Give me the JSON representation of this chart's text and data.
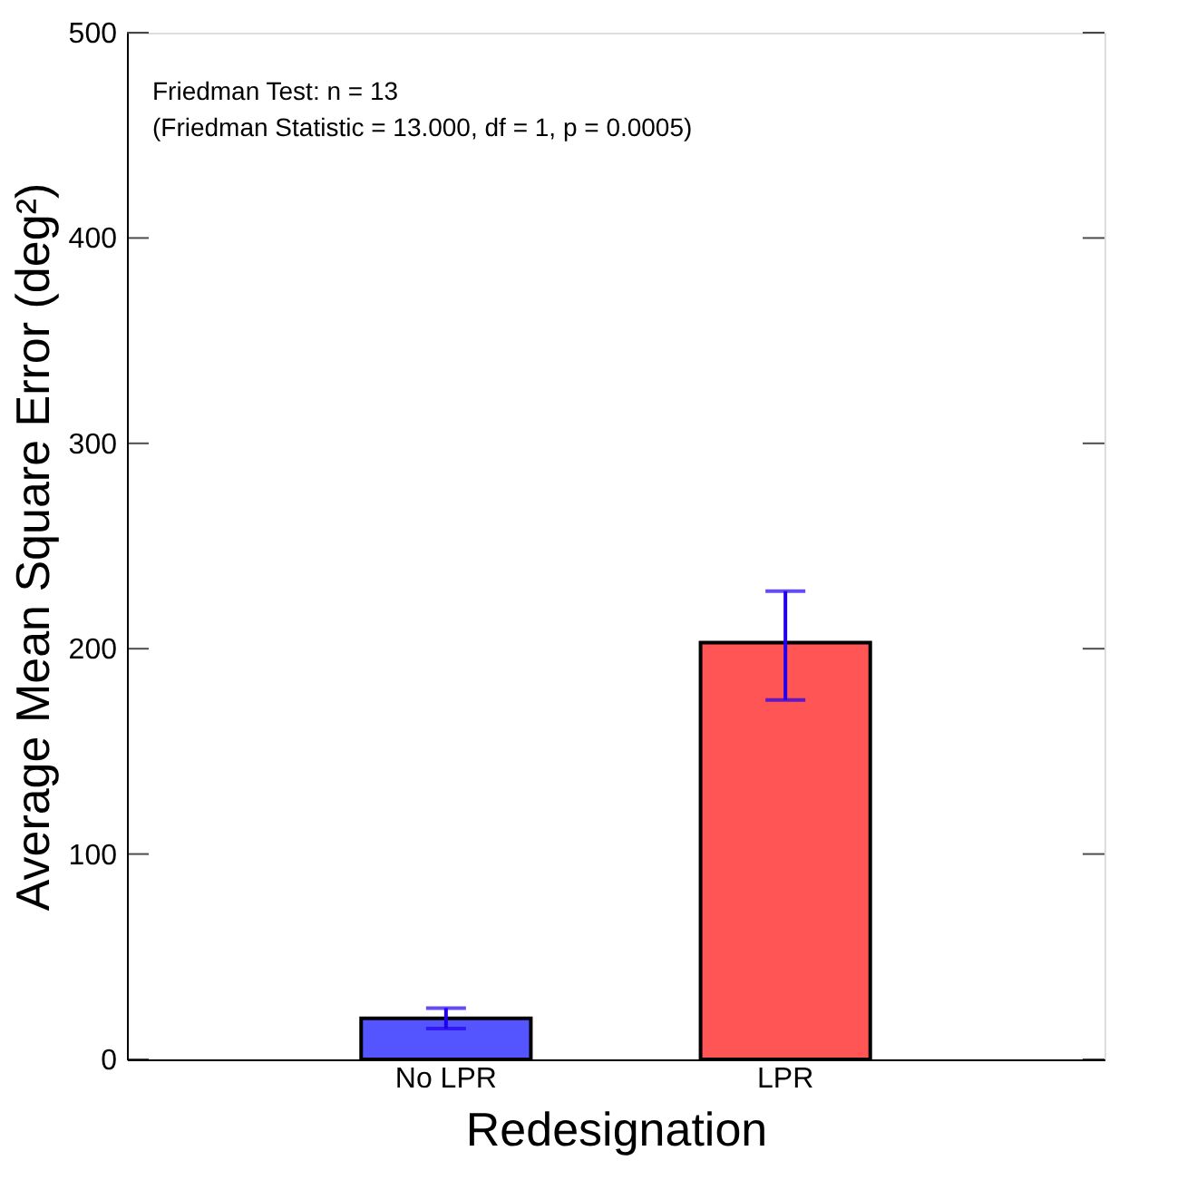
{
  "chart_data": {
    "type": "bar",
    "xlabel": "Redesignation",
    "ylabel": "Average Mean Square Error (deg²)",
    "categories": [
      "No LPR",
      "LPR"
    ],
    "values": [
      20,
      203
    ],
    "colors": [
      "#5555ff",
      "#ff5555"
    ],
    "errors": [
      [
        15,
        25
      ],
      [
        175,
        228
      ]
    ],
    "ylim": [
      0,
      500
    ],
    "yticks": [
      0,
      100,
      200,
      300,
      400,
      500
    ],
    "grid": false,
    "annotations": [
      "Friedman Test: n = 13",
      "(Friedman Statistic = 13.000, df = 1, p = 0.0005)"
    ]
  }
}
